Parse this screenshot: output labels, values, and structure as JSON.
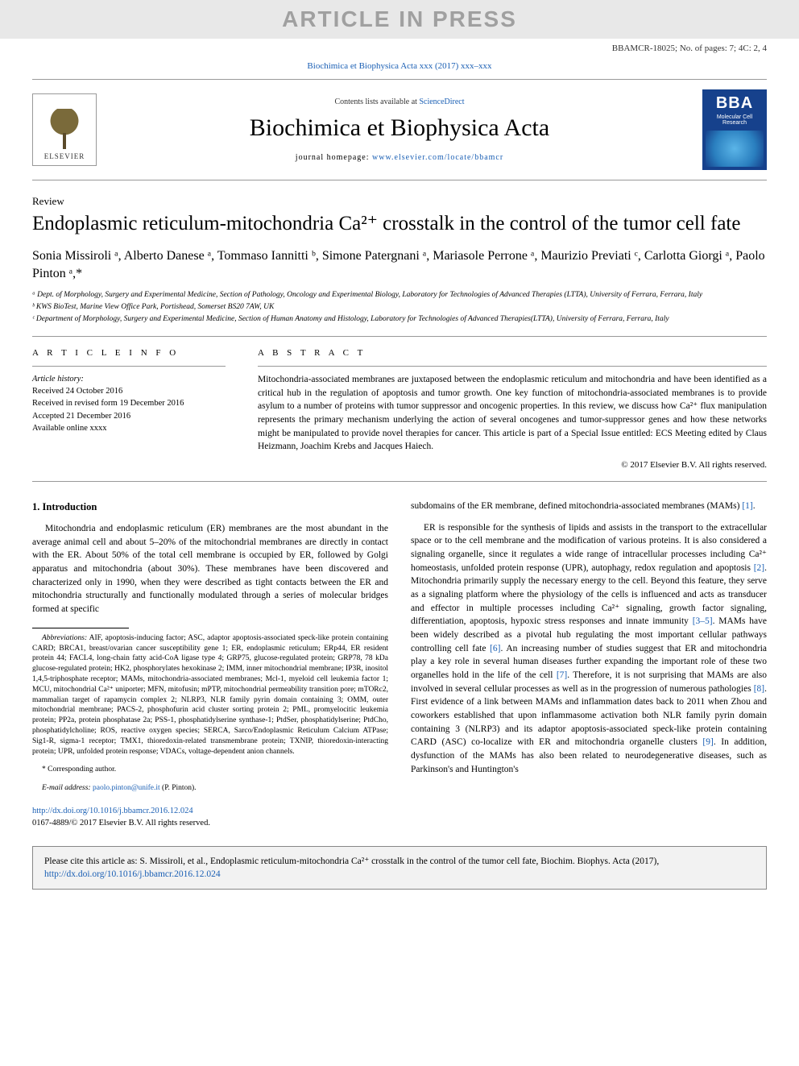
{
  "banner": "ARTICLE IN PRESS",
  "header_meta": "BBAMCR-18025; No. of pages: 7; 4C: 2, 4",
  "journal_ref_prefix": "Biochimica et Biophysica Acta xxx (2017) xxx–xxx",
  "masthead": {
    "contents_prefix": "Contents lists available at ",
    "contents_link": "ScienceDirect",
    "journal_title": "Biochimica et Biophysica Acta",
    "homepage_prefix": "journal homepage: ",
    "homepage_url": "www.elsevier.com/locate/bbamcr",
    "elsevier_label": "ELSEVIER",
    "cover_bba": "BBA",
    "cover_sub": "Molecular Cell Research"
  },
  "article": {
    "type": "Review",
    "title": "Endoplasmic reticulum-mitochondria Ca²⁺ crosstalk in the control of the tumor cell fate",
    "authors_html": "Sonia Missiroli ᵃ, Alberto Danese ᵃ, Tommaso Iannitti ᵇ, Simone Patergnani ᵃ, Mariasole Perrone ᵃ, Maurizio Previati ᶜ, Carlotta Giorgi ᵃ, Paolo Pinton ᵃ,*",
    "affiliations": [
      "ᵃ Dept. of Morphology, Surgery and Experimental Medicine, Section of Pathology, Oncology and Experimental Biology, Laboratory for Technologies of Advanced Therapies (LTTA), University of Ferrara, Ferrara, Italy",
      "ᵇ KWS BioTest, Marine View Office Park, Portishead, Somerset BS20 7AW, UK",
      "ᶜ Department of Morphology, Surgery and Experimental Medicine, Section of Human Anatomy and Histology, Laboratory for Technologies of Advanced Therapies(LTTA), University of Ferrara, Ferrara, Italy"
    ]
  },
  "info": {
    "heading": "A R T I C L E   I N F O",
    "history_label": "Article history:",
    "received": "Received 24 October 2016",
    "revised": "Received in revised form 19 December 2016",
    "accepted": "Accepted 21 December 2016",
    "online": "Available online xxxx"
  },
  "abstract": {
    "heading": "A B S T R A C T",
    "text": "Mitochondria-associated membranes are juxtaposed between the endoplasmic reticulum and mitochondria and have been identified as a critical hub in the regulation of apoptosis and tumor growth. One key function of mitochondria-associated membranes is to provide asylum to a number of proteins with tumor suppressor and oncogenic properties. In this review, we discuss how Ca²⁺ flux manipulation represents the primary mechanism underlying the action of several oncogenes and tumor-suppressor genes and how these networks might be manipulated to provide novel therapies for cancer. This article is part of a Special Issue entitled: ECS Meeting edited by Claus Heizmann, Joachim Krebs and Jacques Haiech.",
    "copyright": "© 2017 Elsevier B.V. All rights reserved."
  },
  "body": {
    "section_heading": "1. Introduction",
    "left_p1": "Mitochondria and endoplasmic reticulum (ER) membranes are the most abundant in the average animal cell and about 5–20% of the mitochondrial membranes are directly in contact with the ER. About 50% of the total cell membrane is occupied by ER, followed by Golgi apparatus and mitochondria (about 30%). These membranes have been discovered and characterized only in 1990, when they were described as tight contacts between the ER and mitochondria structurally and functionally modulated through a series of molecular bridges formed at specific",
    "right_p1_a": "subdomains of the ER membrane, defined mitochondria-associated membranes (MAMs) ",
    "right_p1_ref1": "[1]",
    "right_p1_b": ".",
    "right_p2_a": "ER is responsible for the synthesis of lipids and assists in the transport to the extracellular space or to the cell membrane and the modification of various proteins. It is also considered a signaling organelle, since it regulates a wide range of intracellular processes including Ca²⁺ homeostasis, unfolded protein response (UPR), autophagy, redox regulation and apoptosis ",
    "right_p2_ref2": "[2]",
    "right_p2_b": ". Mitochondria primarily supply the necessary energy to the cell. Beyond this feature, they serve as a signaling platform where the physiology of the cells is influenced and acts as transducer and effector in multiple processes including Ca²⁺ signaling, growth factor signaling, differentiation, apoptosis, hypoxic stress responses and innate immunity ",
    "right_p2_ref35": "[3–5]",
    "right_p2_c": ". MAMs have been widely described as a pivotal hub regulating the most important cellular pathways controlling cell fate ",
    "right_p2_ref6": "[6]",
    "right_p2_d": ". An increasing number of studies suggest that ER and mitochondria play a key role in several human diseases further expanding the important role of these two organelles hold in the life of the cell ",
    "right_p2_ref7": "[7]",
    "right_p2_e": ". Therefore, it is not surprising that MAMs are also involved in several cellular processes as well as in the progression of numerous pathologies ",
    "right_p2_ref8": "[8]",
    "right_p2_f": ". First evidence of a link between MAMs and inflammation dates back to 2011 when Zhou and coworkers established that upon inflammasome activation both NLR family pyrin domain containing 3 (NLRP3) and its adaptor apoptosis-associated speck-like protein containing CARD (ASC) co-localize with ER and mitochondria organelle clusters ",
    "right_p2_ref9": "[9]",
    "right_p2_g": ". In addition, dysfunction of the MAMs has also been related to neurodegenerative diseases, such as Parkinson's and Huntington's"
  },
  "footnotes": {
    "abbrev_label": "Abbreviations:",
    "abbrev_text": " AIF, apoptosis-inducing factor; ASC, adaptor apoptosis-associated speck-like protein containing CARD; BRCA1, breast/ovarian cancer susceptibility gene 1; ER, endoplasmic reticulum; ERp44, ER resident protein 44; FACL4, long-chain fatty acid-CoA ligase type 4; GRP75, glucose-regulated protein; GRP78, 78 kDa glucose-regulated protein; HK2, phosphorylates hexokinase 2; IMM, inner mitochondrial membrane; IP3R, inositol 1,4,5-triphosphate receptor; MAMs, mitochondria-associated membranes; Mcl-1, myeloid cell leukemia factor 1; MCU, mitochondrial Ca²⁺ uniporter; MFN, mitofusin; mPTP, mitochondrial permeability transition pore; mTORc2, mammalian target of rapamycin complex 2; NLRP3, NLR family pyrin domain containing 3; OMM, outer mitochondrial membrane; PACS-2, phosphofurin acid cluster sorting protein 2; PML, promyelocitic leukemia protein; PP2a, protein phosphatase 2a; PSS-1, phosphatidylserine synthase-1; PtdSer, phosphatidylserine; PtdCho, phosphatidylcholine; ROS, reactive oxygen species; SERCA, Sarco/Endoplasmic Reticulum Calcium ATPase; Sig1-R, sigma-1 receptor; TMX1, thioredoxin-related transmembrane protein; TXNIP, thioredoxin-interacting protein; UPR, unfolded protein response; VDACs, voltage-dependent anion channels.",
    "corr_label": "* Corresponding author.",
    "email_label": "E-mail address: ",
    "email": "paolo.pinton@unife.it",
    "email_suffix": " (P. Pinton)."
  },
  "doi": {
    "url": "http://dx.doi.org/10.1016/j.bbamcr.2016.12.024",
    "issn_line": "0167-4889/© 2017 Elsevier B.V. All rights reserved."
  },
  "citebox": {
    "text_a": "Please cite this article as: S. Missiroli, et al., Endoplasmic reticulum-mitochondria Ca²⁺ crosstalk in the control of the tumor cell fate, Biochim. Biophys. Acta (2017), ",
    "link": "http://dx.doi.org/10.1016/j.bbamcr.2016.12.024"
  },
  "colors": {
    "link": "#1a5fb4",
    "banner_bg": "#e8e8e8",
    "banner_fg": "#a0a0a0",
    "cover_bg": "#16418c"
  }
}
